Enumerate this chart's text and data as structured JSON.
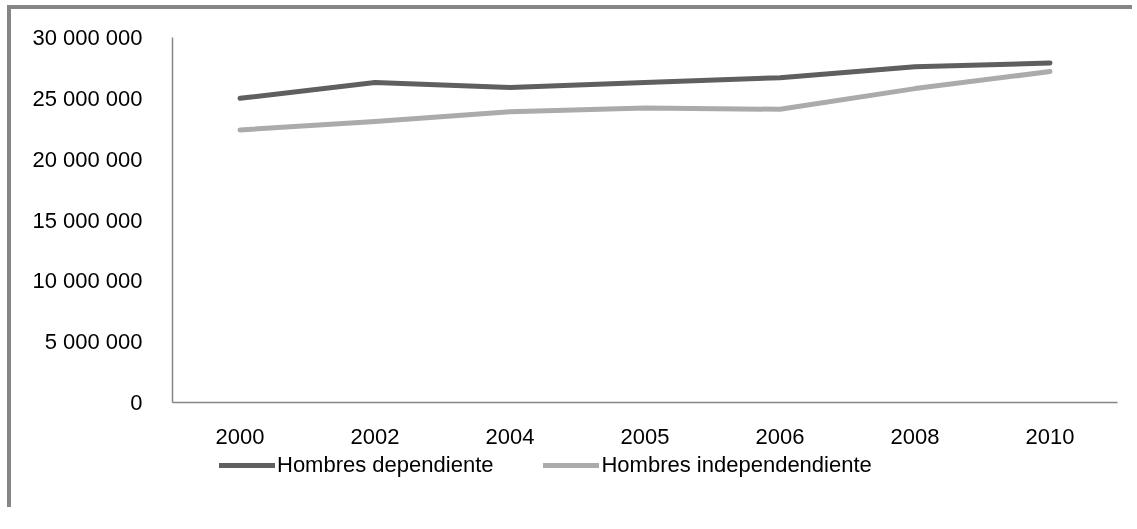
{
  "chart_data": {
    "type": "line",
    "categories": [
      "2000",
      "2002",
      "2004",
      "2005",
      "2006",
      "2008",
      "2010"
    ],
    "series": [
      {
        "name": "Hombres dependiente",
        "color": "#5f5f5f",
        "values": [
          25000000,
          26300000,
          25900000,
          26300000,
          26700000,
          27600000,
          27900000
        ]
      },
      {
        "name": "Hombres independendiente",
        "color": "#ababab",
        "values": [
          22400000,
          23100000,
          23900000,
          24200000,
          24100000,
          25800000,
          27200000
        ]
      }
    ],
    "ylim": [
      0,
      30000000
    ],
    "yticks": [
      0,
      {
        "value": 5000000,
        "label": "5 000 000"
      },
      {
        "value": 10000000,
        "label": "10 000 000"
      },
      {
        "value": 15000000,
        "label": "15 000 000"
      },
      {
        "value": 20000000,
        "label": "20 000 000"
      },
      {
        "value": 25000000,
        "label": "25 000 000"
      },
      {
        "value": 30000000,
        "label": "30 000 000"
      }
    ],
    "legend": "bottom",
    "line_style": "solid"
  }
}
